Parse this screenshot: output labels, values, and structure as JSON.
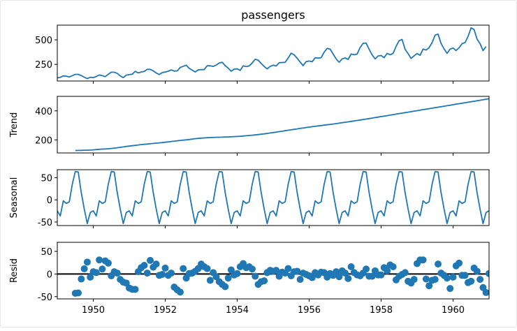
{
  "chart_data": [
    {
      "type": "line",
      "title": "passengers",
      "ylabel": "",
      "x": [
        1949.0,
        1949.0833,
        1949.1667,
        1949.25,
        1949.3333,
        1949.4167,
        1949.5,
        1949.5833,
        1949.6667,
        1949.75,
        1949.8333,
        1949.9167,
        1950.0,
        1950.0833,
        1950.1667,
        1950.25,
        1950.3333,
        1950.4167,
        1950.5,
        1950.5833,
        1950.6667,
        1950.75,
        1950.8333,
        1950.9167,
        1951.0,
        1951.0833,
        1951.1667,
        1951.25,
        1951.3333,
        1951.4167,
        1951.5,
        1951.5833,
        1951.6667,
        1951.75,
        1951.8333,
        1951.9167,
        1952.0,
        1952.0833,
        1952.1667,
        1952.25,
        1952.3333,
        1952.4167,
        1952.5,
        1952.5833,
        1952.6667,
        1952.75,
        1952.8333,
        1952.9167,
        1953.0,
        1953.0833,
        1953.1667,
        1953.25,
        1953.3333,
        1953.4167,
        1953.5,
        1953.5833,
        1953.6667,
        1953.75,
        1953.8333,
        1953.9167,
        1954.0,
        1954.0833,
        1954.1667,
        1954.25,
        1954.3333,
        1954.4167,
        1954.5,
        1954.5833,
        1954.6667,
        1954.75,
        1954.8333,
        1954.9167,
        1955.0,
        1955.0833,
        1955.1667,
        1955.25,
        1955.3333,
        1955.4167,
        1955.5,
        1955.5833,
        1955.6667,
        1955.75,
        1955.8333,
        1955.9167,
        1956.0,
        1956.0833,
        1956.1667,
        1956.25,
        1956.3333,
        1956.4167,
        1956.5,
        1956.5833,
        1956.6667,
        1956.75,
        1956.8333,
        1956.9167,
        1957.0,
        1957.0833,
        1957.1667,
        1957.25,
        1957.3333,
        1957.4167,
        1957.5,
        1957.5833,
        1957.6667,
        1957.75,
        1957.8333,
        1957.9167,
        1958.0,
        1958.0833,
        1958.1667,
        1958.25,
        1958.3333,
        1958.4167,
        1958.5,
        1958.5833,
        1958.6667,
        1958.75,
        1958.8333,
        1958.9167,
        1959.0,
        1959.0833,
        1959.1667,
        1959.25,
        1959.3333,
        1959.4167,
        1959.5,
        1959.5833,
        1959.6667,
        1959.75,
        1959.8333,
        1959.9167,
        1960.0,
        1960.0833,
        1960.1667,
        1960.25,
        1960.3333,
        1960.4167,
        1960.5,
        1960.5833,
        1960.6667,
        1960.75,
        1960.8333,
        1960.9167
      ],
      "values": [
        112,
        118,
        132,
        129,
        121,
        135,
        148,
        148,
        136,
        119,
        104,
        118,
        115,
        126,
        141,
        135,
        125,
        149,
        170,
        170,
        158,
        133,
        114,
        140,
        145,
        150,
        178,
        163,
        172,
        178,
        199,
        199,
        184,
        162,
        146,
        166,
        171,
        180,
        193,
        181,
        183,
        218,
        230,
        242,
        209,
        191,
        172,
        194,
        196,
        196,
        236,
        235,
        229,
        243,
        264,
        272,
        237,
        211,
        180,
        201,
        204,
        188,
        235,
        227,
        234,
        264,
        302,
        293,
        259,
        229,
        203,
        229,
        242,
        233,
        267,
        269,
        270,
        315,
        364,
        347,
        312,
        274,
        237,
        278,
        284,
        277,
        317,
        313,
        318,
        374,
        413,
        405,
        355,
        306,
        271,
        306,
        315,
        301,
        356,
        348,
        355,
        422,
        465,
        467,
        404,
        347,
        305,
        336,
        340,
        318,
        362,
        348,
        363,
        435,
        491,
        505,
        404,
        359,
        310,
        337,
        360,
        342,
        406,
        396,
        420,
        472,
        548,
        559,
        463,
        407,
        362,
        405,
        417,
        391,
        419,
        461,
        472,
        535,
        622,
        606,
        508,
        461,
        390,
        432
      ],
      "yticks": [
        250,
        500
      ],
      "ylim": [
        80,
        650
      ]
    },
    {
      "type": "line",
      "title": "",
      "ylabel": "Trend",
      "x_start": 1949.5,
      "x_step": 0.0833333,
      "values": [
        126.79,
        127.25,
        127.96,
        128.58,
        129.0,
        129.75,
        131.25,
        133.08,
        134.92,
        136.42,
        137.42,
        138.75,
        140.92,
        143.17,
        145.71,
        148.42,
        151.54,
        154.71,
        157.12,
        159.54,
        161.83,
        164.79,
        167.54,
        169.46,
        171.04,
        173.0,
        175.38,
        177.5,
        179.38,
        181.29,
        183.54,
        186.0,
        188.92,
        191.42,
        193.83,
        196.33,
        198.29,
        200.25,
        202.42,
        205.12,
        208.04,
        210.29,
        212.04,
        213.62,
        214.83,
        216.08,
        216.96,
        217.96,
        218.46,
        219.0,
        219.71,
        220.5,
        221.5,
        222.46,
        223.46,
        224.79,
        226.38,
        228.25,
        230.21,
        232.12,
        234.33,
        236.79,
        239.21,
        241.62,
        244.29,
        247.5,
        250.62,
        253.67,
        256.71,
        259.92,
        263.0,
        266.33,
        269.58,
        272.75,
        275.83,
        278.92,
        282.12,
        285.17,
        288.17,
        290.96,
        293.67,
        296.25,
        298.88,
        301.5,
        304.0,
        306.58,
        309.42,
        312.33,
        315.17,
        318.25,
        321.33,
        324.29,
        327.42,
        330.62,
        333.79,
        337.04,
        340.25,
        343.58,
        347.0,
        350.42,
        353.79,
        357.17,
        360.5,
        363.83,
        367.25,
        370.67,
        374.08,
        377.5,
        380.92,
        384.42,
        387.83,
        391.25,
        394.67,
        398.08,
        401.5,
        404.92,
        408.33,
        411.75,
        415.17,
        418.58,
        422.0,
        425.42,
        428.83,
        432.25,
        435.67,
        439.08,
        442.5,
        445.92,
        449.33,
        452.75,
        456.17,
        459.58,
        463.0,
        466.42,
        469.83,
        473.25,
        476.67,
        480.08,
        483.5,
        486.92,
        490.33
      ],
      "values_note_removed": true,
      "yticks": [
        200,
        400
      ],
      "ylim": [
        110,
        500
      ]
    },
    {
      "type": "line",
      "title": "",
      "ylabel": "Seasonal",
      "pattern": [
        -24.75,
        -36.19,
        -2.24,
        -8.04,
        -4.51,
        35.4,
        63.83,
        62.82,
        16.52,
        -20.64,
        -53.59,
        -28.62
      ],
      "yticks": [
        -50,
        0,
        50
      ],
      "ylim": [
        -58,
        68
      ]
    },
    {
      "type": "scatter",
      "title": "",
      "ylabel": "Resid",
      "x_start": 1949.5,
      "x_step": 0.0833333,
      "values": [
        -42.6,
        -41.9,
        -11.1,
        11.5,
        26.3,
        -7,
        5,
        3,
        31,
        11,
        29,
        24,
        -4,
        5,
        2,
        -12,
        -18,
        -20,
        -31,
        -34,
        -34,
        5,
        14,
        19,
        2,
        30,
        15,
        22,
        -3,
        -1,
        13,
        -3,
        2,
        -29,
        -35,
        -40,
        12,
        -9,
        1,
        2,
        6,
        12,
        22,
        16,
        12,
        -14,
        3,
        -6,
        -17,
        -23,
        -28,
        -9,
        9,
        -2,
        1,
        16,
        23,
        14,
        16,
        11,
        -5,
        -23,
        -17,
        -15,
        3,
        8,
        6,
        8,
        -5,
        4,
        2,
        12,
        -4,
        5,
        6,
        -12,
        2,
        -1,
        -4,
        -8,
        3,
        -2,
        4,
        3,
        -7,
        1,
        -3,
        5,
        -6,
        7,
        2,
        -10,
        16,
        3,
        -2,
        -4,
        2,
        11,
        -5,
        -5,
        7,
        -2,
        -2,
        14,
        7,
        20,
        16,
        -13,
        -5,
        -1,
        3,
        -16,
        -20,
        -12,
        23,
        31,
        31,
        -11,
        -26,
        -14,
        -12,
        22,
        2,
        -3,
        -9,
        -32,
        -7,
        18,
        24,
        -3,
        -3,
        -19,
        -16,
        13,
        6,
        -12,
        -30,
        -41,
        1,
        16
      ],
      "yticks": [
        -50,
        0,
        50
      ],
      "ylim": [
        -55,
        70
      ]
    }
  ],
  "x_axis": {
    "xlim": [
      1949.0,
      1961.0
    ],
    "ticks": [
      1950,
      1952,
      1954,
      1956,
      1958,
      1960
    ]
  },
  "colors": {
    "line": "#1f77b4",
    "axis": "#000000",
    "baseline": "#000000"
  }
}
